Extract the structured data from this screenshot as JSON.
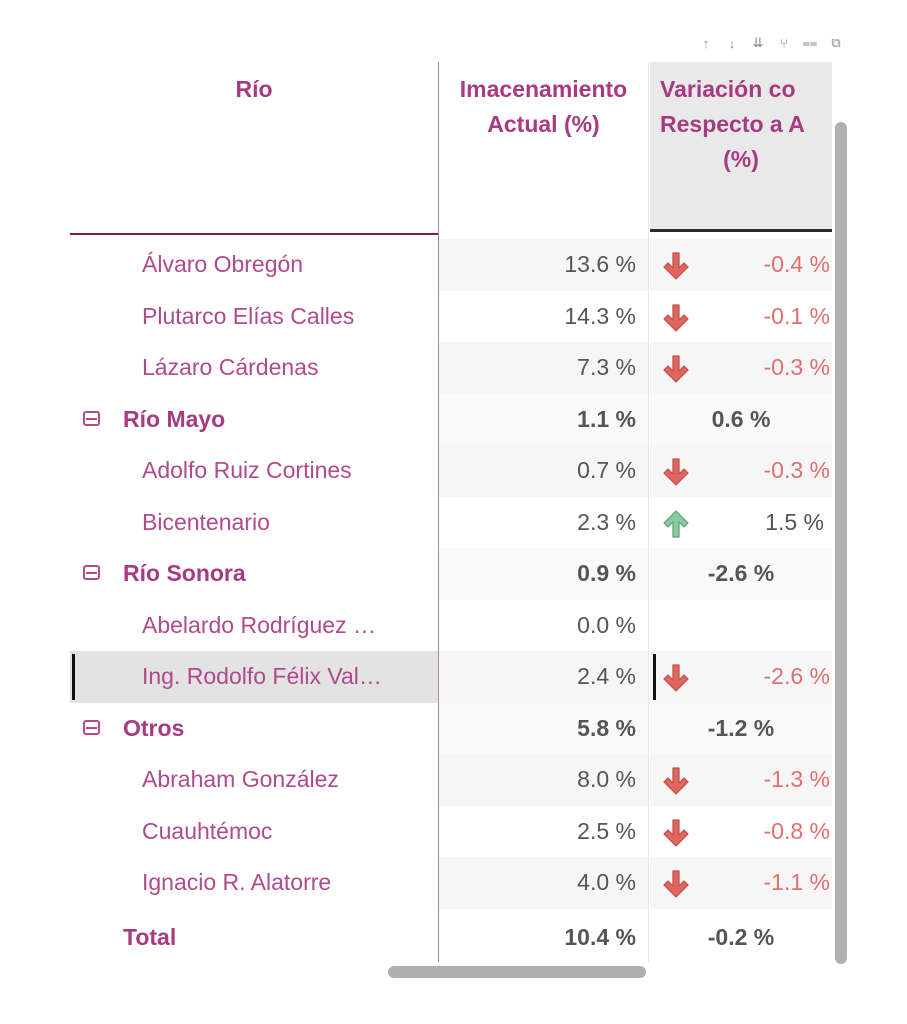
{
  "toolbar": {
    "icons": [
      "sort-ascending-icon",
      "sort-descending-icon",
      "sort-both-icon",
      "hierarchy-icon",
      "filter-icon",
      "focus-mode-icon"
    ],
    "glyphs": [
      "↑",
      "↓",
      "⇊",
      "⑂",
      "⩵",
      "⧉"
    ]
  },
  "table": {
    "headers": {
      "rio": "Río",
      "almacenamiento": "Imacenamiento\nActual (%)",
      "variacion_l1": "Variación co",
      "variacion_l2": "Respecto a A",
      "variacion_l3": "(%)"
    },
    "rows": [
      {
        "type": "child",
        "name": "Álvaro Obregón",
        "almacenamiento": "13.6 %",
        "variacion": "-0.4 %",
        "trend": "down"
      },
      {
        "type": "child",
        "name": "Plutarco Elías Calles",
        "almacenamiento": "14.3 %",
        "variacion": "-0.1 %",
        "trend": "down"
      },
      {
        "type": "child",
        "name": "Lázaro Cárdenas",
        "almacenamiento": "7.3 %",
        "variacion": "-0.3 %",
        "trend": "down"
      },
      {
        "type": "group",
        "name": "Río Mayo",
        "almacenamiento": "1.1 %",
        "variacion": "0.6 %"
      },
      {
        "type": "child",
        "name": "Adolfo Ruiz Cortines",
        "almacenamiento": "0.7 %",
        "variacion": "-0.3 %",
        "trend": "down"
      },
      {
        "type": "child",
        "name": "Bicentenario",
        "almacenamiento": "2.3 %",
        "variacion": "1.5 %",
        "trend": "up"
      },
      {
        "type": "group",
        "name": "Río Sonora",
        "almacenamiento": "0.9 %",
        "variacion": "-2.6 %"
      },
      {
        "type": "child",
        "name": "Abelardo Rodríguez …",
        "almacenamiento": "0.0 %",
        "variacion": "",
        "trend": "none"
      },
      {
        "type": "child",
        "name": "Ing. Rodolfo Félix Val…",
        "almacenamiento": "2.4 %",
        "variacion": "-2.6 %",
        "trend": "down",
        "selected": true
      },
      {
        "type": "group",
        "name": "Otros",
        "almacenamiento": "5.8 %",
        "variacion": "-1.2 %"
      },
      {
        "type": "child",
        "name": "Abraham González",
        "almacenamiento": "8.0 %",
        "variacion": "-1.3 %",
        "trend": "down"
      },
      {
        "type": "child",
        "name": "Cuauhtémoc",
        "almacenamiento": "2.5 %",
        "variacion": "-0.8 %",
        "trend": "down"
      },
      {
        "type": "child",
        "name": "Ignacio R. Alatorre",
        "almacenamiento": "4.0 %",
        "variacion": "-1.1 %",
        "trend": "down"
      }
    ],
    "total": {
      "name": "Total",
      "almacenamiento": "10.4 %",
      "variacion": "-0.2 %"
    }
  },
  "colors": {
    "accent": "#a83a82",
    "down_arrow": "#e0675f",
    "up_arrow": "#6fb58a",
    "negative_text": "#e07070",
    "neutral_text": "#555555"
  }
}
